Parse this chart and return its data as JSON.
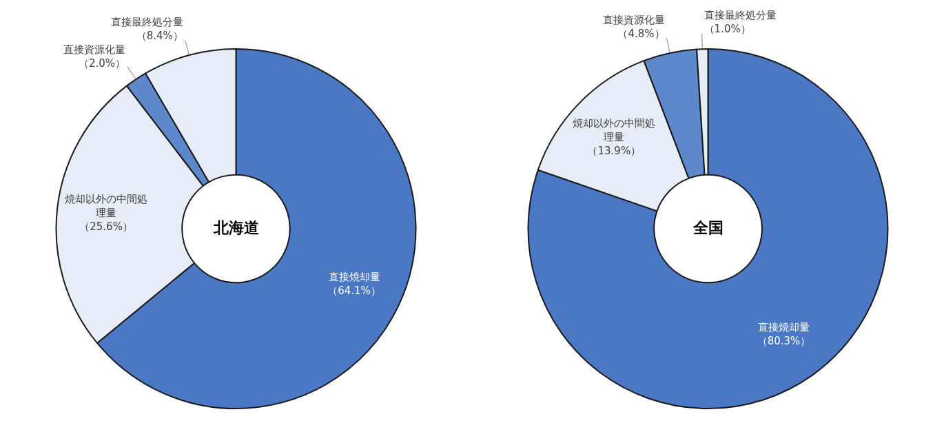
{
  "chart_data": [
    {
      "type": "donut",
      "title": "北海道",
      "categories": [
        "直接焼却量",
        "焼却以外の中間処理量",
        "直接資源化量",
        "直接最終処分量"
      ],
      "values": [
        64.1,
        25.6,
        2.0,
        8.4
      ],
      "value_labels": [
        "（64.1%）",
        "（25.6%）",
        "（2.0%）",
        "（8.4%）"
      ],
      "colors": [
        "#4a78c4",
        "#e6edf7",
        "#5d88cc",
        "#e6edf7"
      ],
      "legend": false
    },
    {
      "type": "donut",
      "title": "全国",
      "categories": [
        "直接焼却量",
        "焼却以外の中間処理量",
        "直接資源化量",
        "直接最終処分量"
      ],
      "values": [
        80.3,
        13.9,
        4.8,
        1.0
      ],
      "value_labels": [
        "（80.3%）",
        "（13.9%）",
        "（4.8%）",
        "（1.0%）"
      ],
      "colors": [
        "#4a78c4",
        "#e6edf7",
        "#5d88cc",
        "#e6edf7"
      ],
      "legend": false
    }
  ]
}
